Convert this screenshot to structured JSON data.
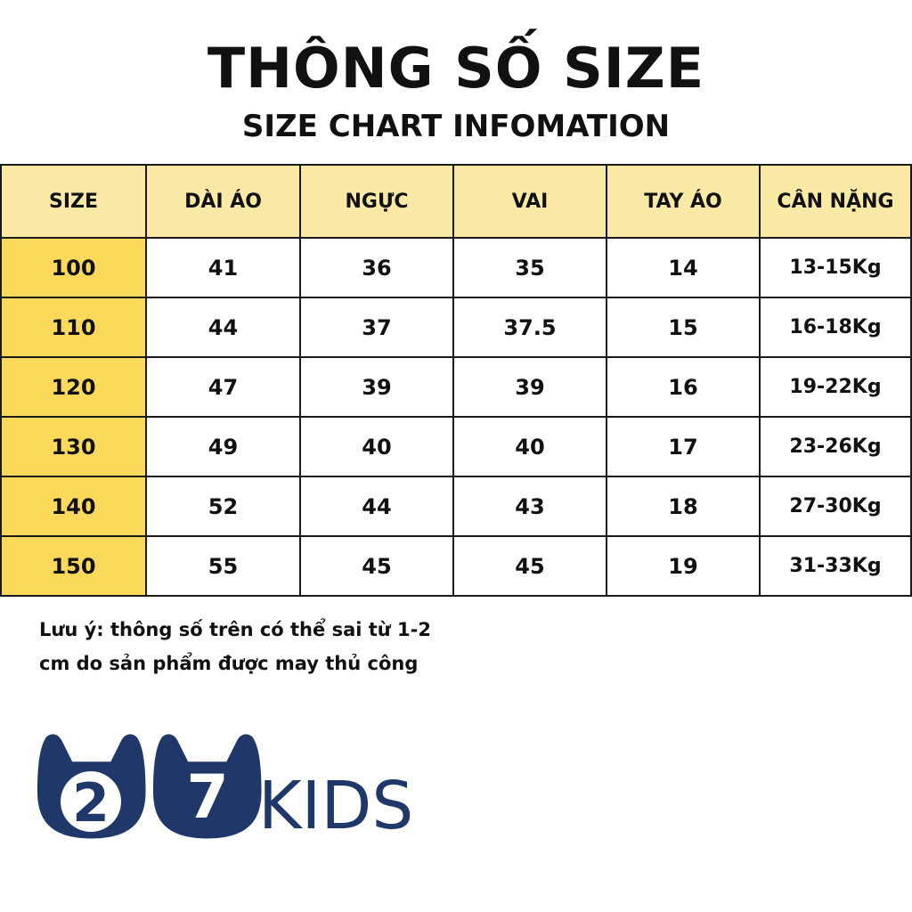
{
  "header": {
    "title": "THÔNG SỐ SIZE",
    "subtitle": "SIZE CHART INFOMATION"
  },
  "table": {
    "columns": [
      "SIZE",
      "DÀI ÁO",
      "NGỰC",
      "VAI",
      "TAY ÁO",
      "CÂN NẶNG"
    ],
    "rows": [
      [
        "100",
        "41",
        "36",
        "35",
        "14",
        "13-15Kg"
      ],
      [
        "110",
        "44",
        "37",
        "37.5",
        "15",
        "16-18Kg"
      ],
      [
        "120",
        "47",
        "39",
        "39",
        "16",
        "19-22Kg"
      ],
      [
        "130",
        "49",
        "40",
        "40",
        "17",
        "23-26Kg"
      ],
      [
        "140",
        "52",
        "44",
        "43",
        "18",
        "27-30Kg"
      ],
      [
        "150",
        "55",
        "45",
        "45",
        "19",
        "31-33Kg"
      ]
    ],
    "colors": {
      "header_bg": "#faeaa6",
      "size_column_bg": "#fcd95a",
      "border": "#1a1a1a"
    }
  },
  "note": {
    "line1": "Lưu ý: thông số trên có thể sai từ 1-2",
    "line2": "cm do sản phẩm được may thủ công"
  },
  "brand": {
    "digit1": "2",
    "digit2": "7",
    "wordmark": "KIDS",
    "color": "#1f3769",
    "icon": "bunny-head-logo-icon"
  }
}
